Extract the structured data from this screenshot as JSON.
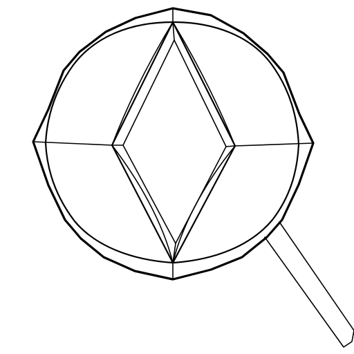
{
  "illustration": {
    "subject": "magnifying-glass-gem-outline",
    "stroke_color": "#000000",
    "background_color": "#ffffff"
  }
}
